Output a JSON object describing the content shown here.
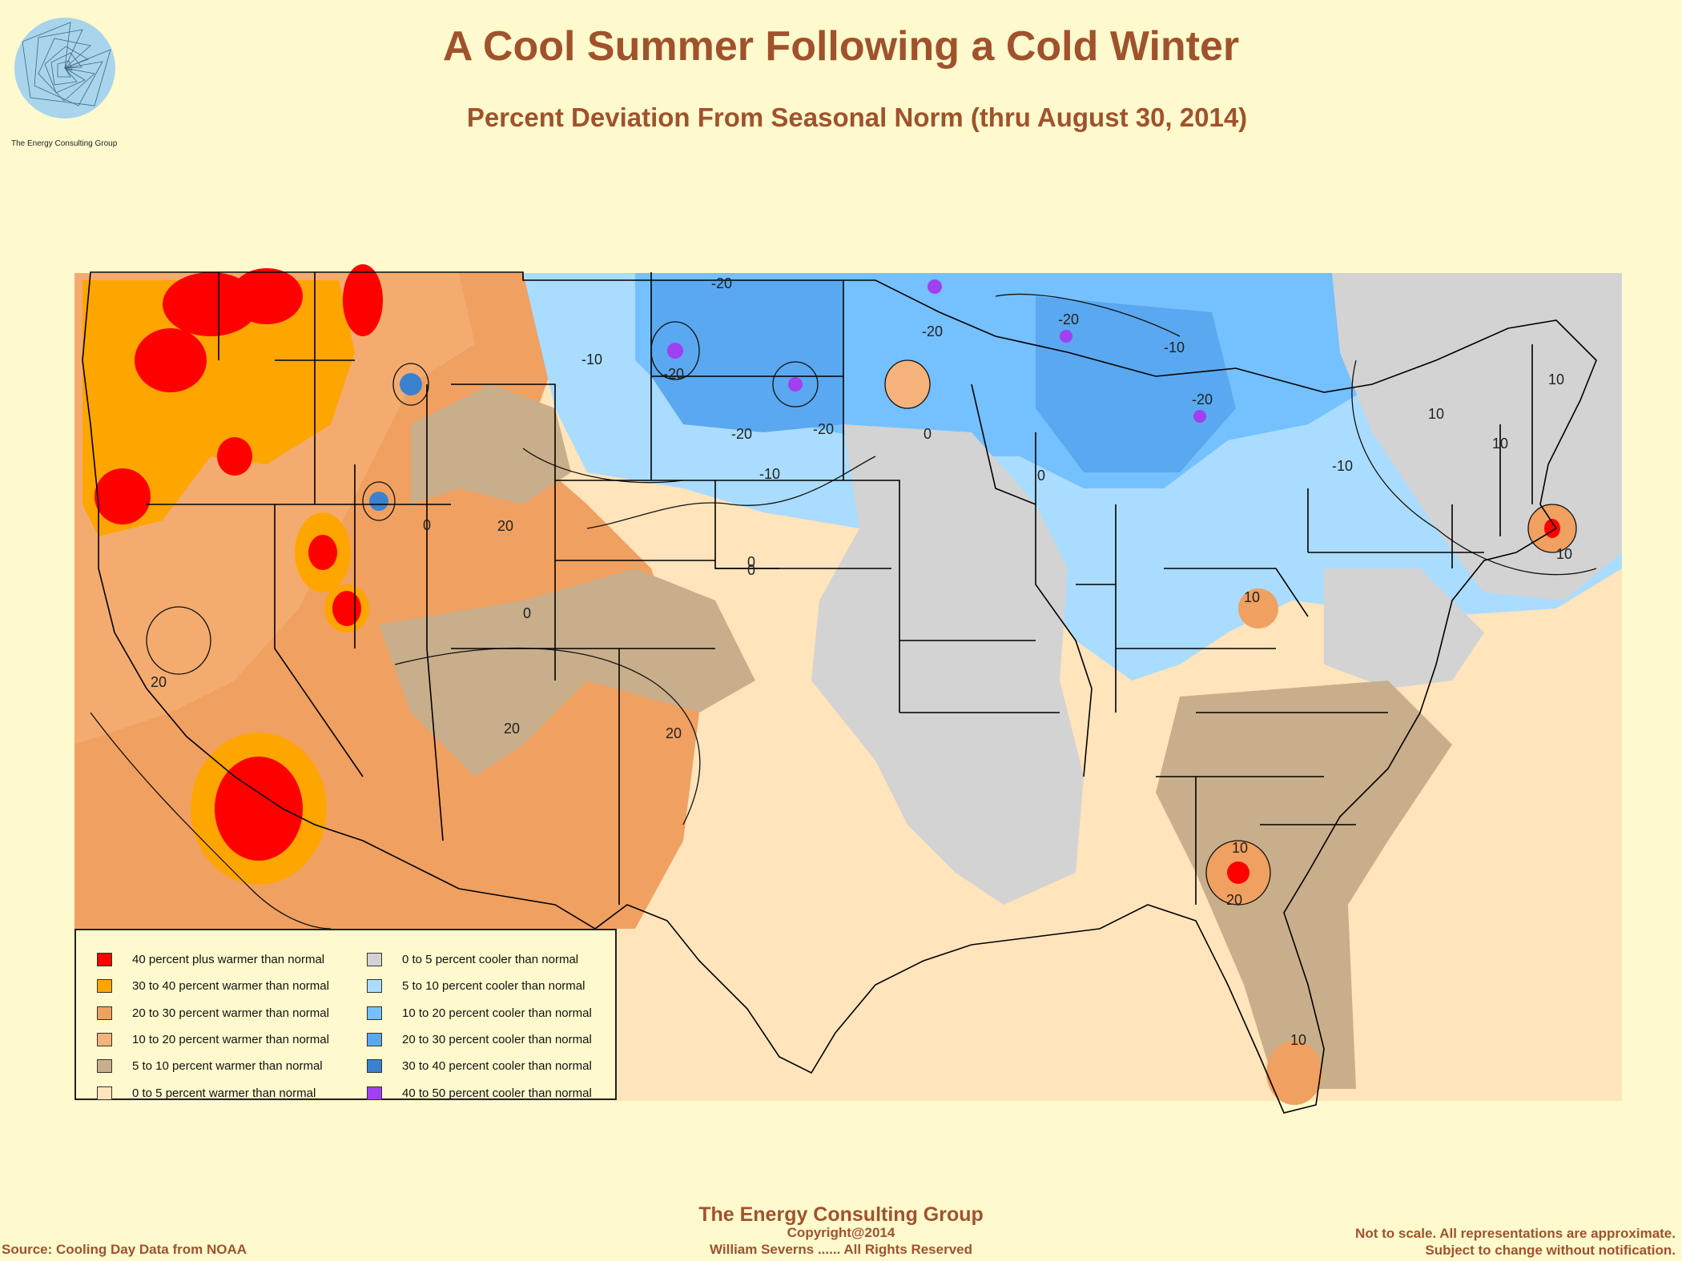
{
  "header": {
    "title": "A Cool Summer Following a Cold Winter",
    "subtitle": "Percent Deviation From Seasonal Norm (thru August 30, 2014)"
  },
  "logo": {
    "icon": "spiral-logo-icon",
    "text": "The Energy Consulting Group"
  },
  "map": {
    "contour_labels": [
      "-20",
      "-10",
      "-20",
      "-20",
      "-20",
      "-20",
      "-20",
      "-20",
      "-10",
      "-10",
      "0",
      "0",
      "0",
      "20",
      "20",
      "20",
      "20",
      "10",
      "20",
      "10",
      "10",
      "-10",
      "0",
      "10",
      "10",
      "10",
      "0",
      "0",
      "10"
    ]
  },
  "legend": {
    "left": [
      {
        "label": "40 percent plus warmer than normal",
        "color": "#ff0000"
      },
      {
        "label": "30 to 40 percent warmer than normal",
        "color": "#ffa500"
      },
      {
        "label": "20 to 30 percent warmer than normal",
        "color": "#f0a060"
      },
      {
        "label": "10 to 20 percent warmer than normal",
        "color": "#f5b27a"
      },
      {
        "label": "5 to 10 percent warmer than normal",
        "color": "#c8ae8a"
      },
      {
        "label": "0 to 5 percent warmer than normal",
        "color": "#ffe4bc"
      }
    ],
    "right": [
      {
        "label": "0 to 5 percent cooler than normal",
        "color": "#d3d3d3"
      },
      {
        "label": "5 to 10 percent cooler than normal",
        "color": "#aadcff"
      },
      {
        "label": "10 to 20 percent cooler than normal",
        "color": "#75c0ff"
      },
      {
        "label": "20 to 30 percent cooler than normal",
        "color": "#5aa8ef"
      },
      {
        "label": "30 to 40 percent cooler than normal",
        "color": "#3a82d0"
      },
      {
        "label": "40 to 50 percent cooler than normal",
        "color": "#a040f0"
      }
    ]
  },
  "footer": {
    "org": "The Energy Consulting Group",
    "copyright": "Copyright@2014",
    "rights": "William Severns ...... All Rights Reserved",
    "source": "Source: Cooling Day Data from NOAA",
    "disclaimer_1": "Not to scale. All representations are approximate.",
    "disclaimer_2": "Subject to change without notification."
  },
  "colors": {
    "text_accent": "#a0522d",
    "background": "#fffacd"
  }
}
